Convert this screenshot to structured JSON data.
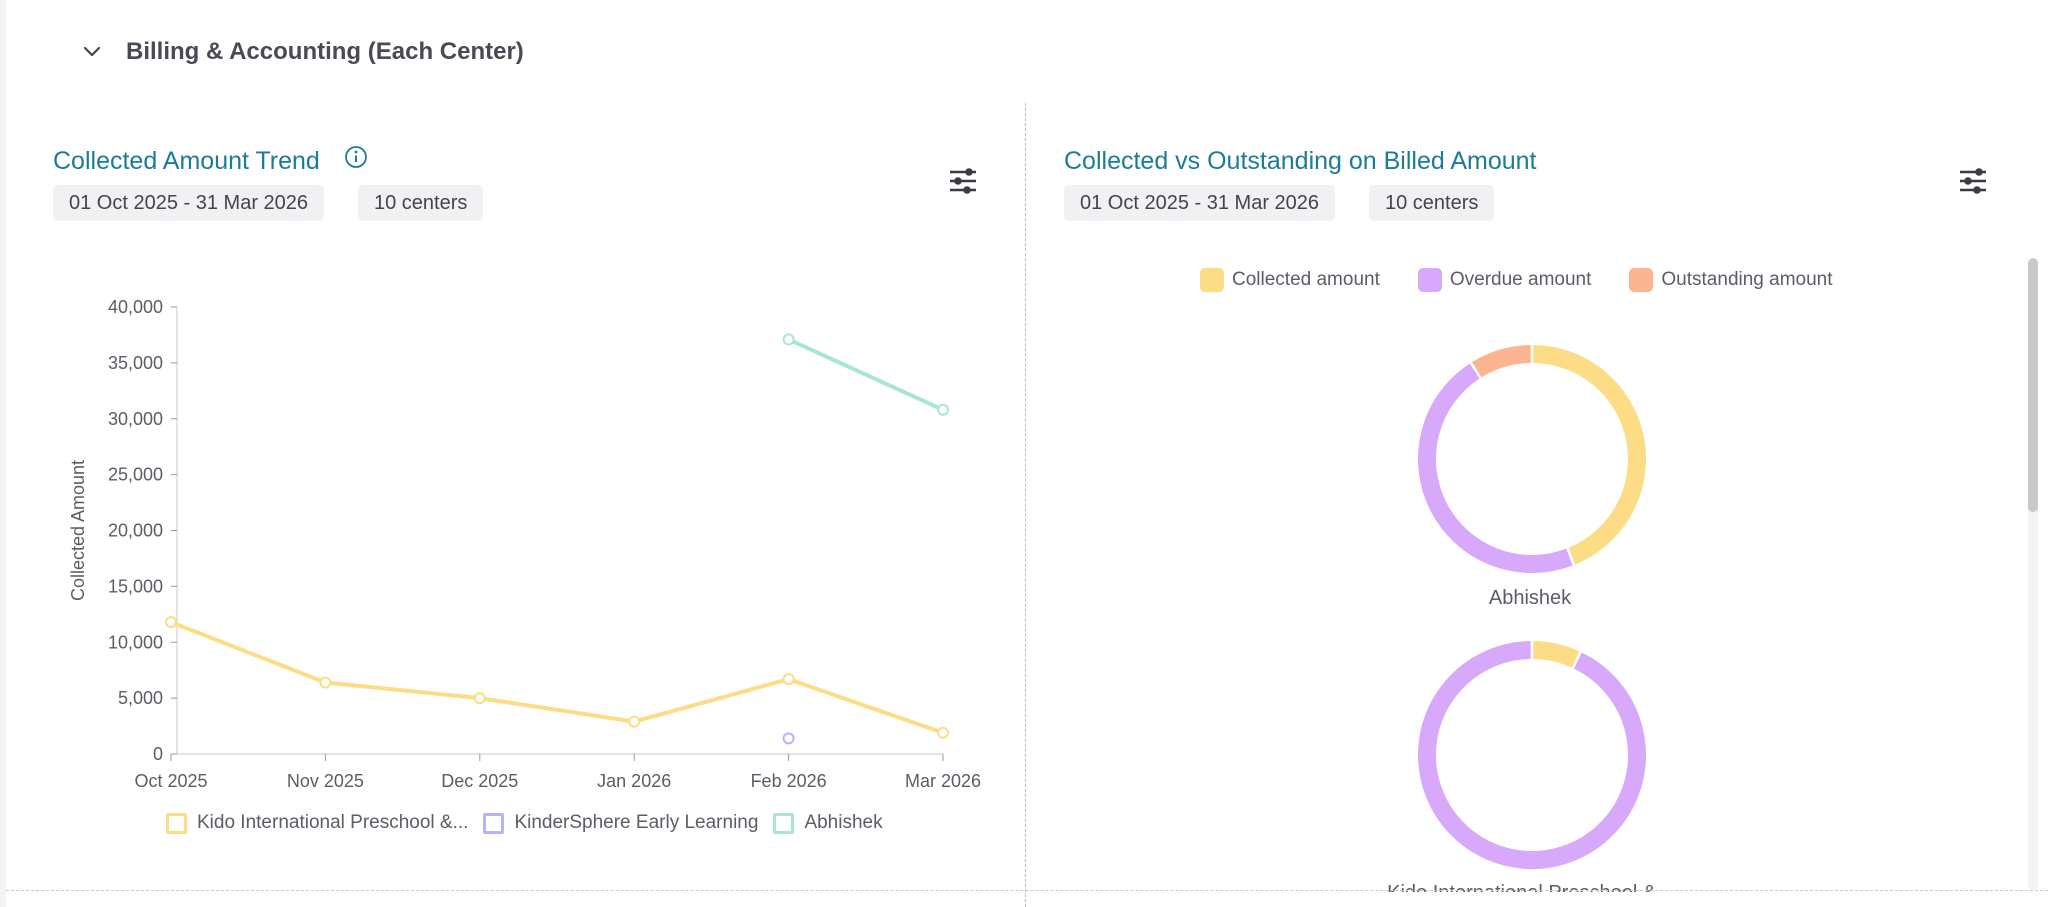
{
  "section": {
    "title": "Billing & Accounting (Each Center)"
  },
  "left_panel": {
    "title": "Collected Amount Trend",
    "date_range": "01 Oct 2025 - 31 Mar 2026",
    "centers": "10 centers"
  },
  "right_panel": {
    "title": "Collected vs Outstanding on Billed Amount",
    "date_range": "01 Oct 2025 - 31 Mar 2026",
    "centers": "10 centers"
  },
  "colors": {
    "accent": "#1a7c96",
    "yellow": "#fddc86",
    "purple": "#d8a8fb",
    "orange": "#fbb591",
    "blue": "#b5b4fb",
    "teal": "#a8e6d4"
  },
  "chart_data": [
    {
      "type": "line",
      "title": "Collected Amount Trend",
      "xlabel": "",
      "ylabel": "Collected Amount",
      "categories": [
        "Oct 2025",
        "Nov 2025",
        "Dec 2025",
        "Jan 2026",
        "Feb 2026",
        "Mar 2026"
      ],
      "ylim": [
        0,
        40000
      ],
      "yticks": [
        0,
        5000,
        10000,
        15000,
        20000,
        25000,
        30000,
        35000,
        40000
      ],
      "ytick_labels": [
        "0",
        "5,000",
        "10,000",
        "15,000",
        "20,000",
        "25,000",
        "30,000",
        "35,000",
        "40,000"
      ],
      "series": [
        {
          "name": "Kido International Preschool &...",
          "color": "#fddc86",
          "values": [
            11800,
            6400,
            5000,
            2900,
            6700,
            1900
          ]
        },
        {
          "name": "KinderSphere Early Learning",
          "color": "#b5b4fb",
          "values": [
            null,
            null,
            null,
            null,
            1400,
            null
          ]
        },
        {
          "name": "Abhishek",
          "color": "#a8e6d4",
          "values": [
            null,
            null,
            null,
            null,
            37100,
            30800
          ]
        }
      ]
    },
    {
      "type": "pie",
      "title": "Collected vs Outstanding on Billed Amount",
      "legend": [
        "Collected amount",
        "Overdue amount",
        "Outstanding amount"
      ],
      "legend_colors": [
        "#fddc86",
        "#d8a8fb",
        "#fbb591"
      ],
      "donuts": [
        {
          "label": "Abhishek",
          "values": [
            44,
            47,
            9
          ]
        },
        {
          "label": "Kido International Preschool &...",
          "values": [
            7,
            93,
            0
          ]
        }
      ]
    }
  ]
}
